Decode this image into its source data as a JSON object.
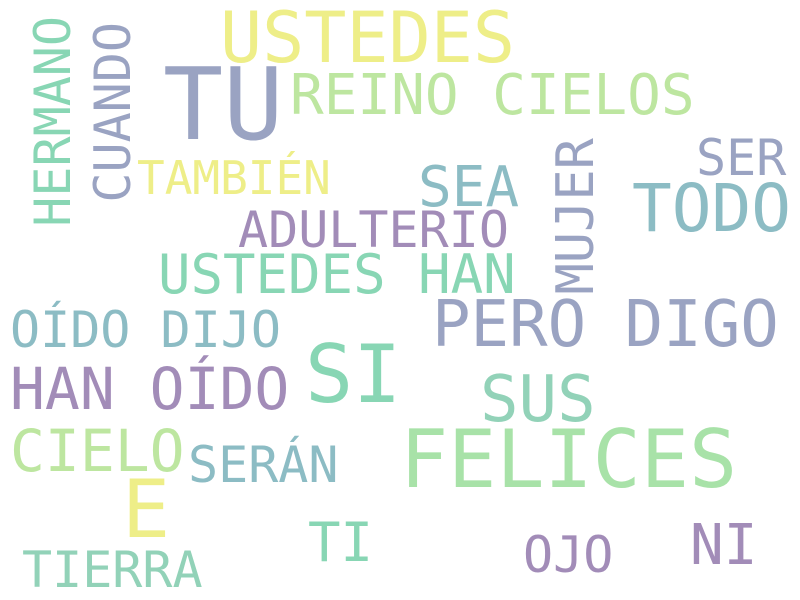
{
  "palette": {
    "yellow": "#eeee88",
    "slate": "#9aa3c2",
    "lightgreen": "#bde6a0",
    "mint": "#88d6b4",
    "teal": "#8cbcc4",
    "purple": "#a28cb8",
    "green": "#a8e2a8",
    "seafoam": "#92d2b8"
  },
  "words": [
    {
      "text": "USTEDES",
      "color": "yellow"
    },
    {
      "text": "TU",
      "color": "slate"
    },
    {
      "text": "REINO CIELOS",
      "color": "lightgreen"
    },
    {
      "text": "HERMANO",
      "color": "mint"
    },
    {
      "text": "CUANDO",
      "color": "slate"
    },
    {
      "text": "TAMBIÉN",
      "color": "yellow"
    },
    {
      "text": "SEA",
      "color": "teal"
    },
    {
      "text": "SER",
      "color": "slate"
    },
    {
      "text": "TODO",
      "color": "teal"
    },
    {
      "text": "MUJER",
      "color": "slate"
    },
    {
      "text": "ADULTERIO",
      "color": "purple"
    },
    {
      "text": "USTEDES HAN",
      "color": "mint"
    },
    {
      "text": "OÍDO DIJO",
      "color": "teal"
    },
    {
      "text": "PERO DIGO",
      "color": "slate"
    },
    {
      "text": "SI",
      "color": "mint"
    },
    {
      "text": "HAN OÍDO",
      "color": "purple"
    },
    {
      "text": "SUS",
      "color": "seafoam"
    },
    {
      "text": "CIELO",
      "color": "lightgreen"
    },
    {
      "text": "FELICES",
      "color": "green"
    },
    {
      "text": "SERÁN",
      "color": "teal"
    },
    {
      "text": "E",
      "color": "yellow"
    },
    {
      "text": "TI",
      "color": "mint"
    },
    {
      "text": "OJO",
      "color": "purple"
    },
    {
      "text": "NI",
      "color": "purple"
    },
    {
      "text": "TIERRA",
      "color": "seafoam"
    }
  ]
}
